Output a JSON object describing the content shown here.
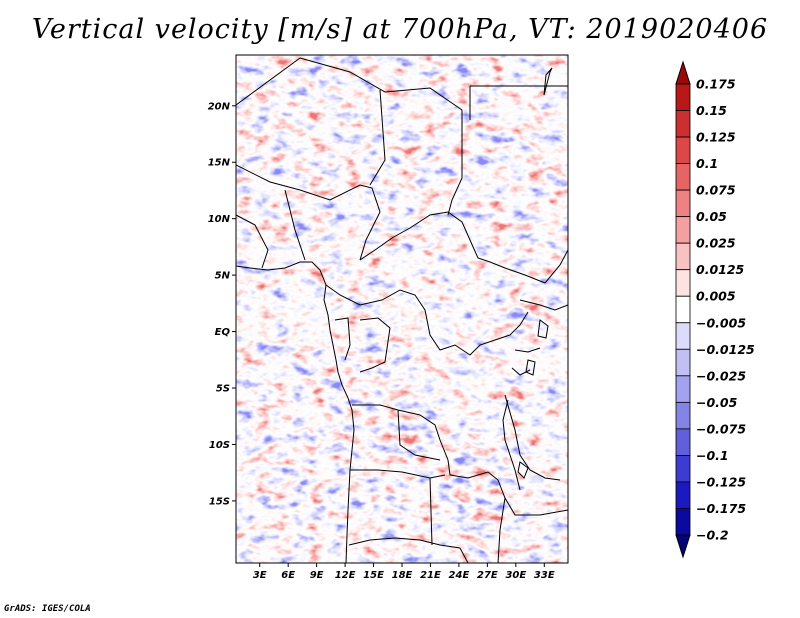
{
  "title": "Vertical velocity [m/s] at 700hPa, VT: 2019020406",
  "credit": "GrADS: IGES/COLA",
  "map": {
    "variable": "Vertical velocity",
    "units": "m/s",
    "level": "700hPa",
    "valid_time": "2019020406",
    "lat_labels": [
      "20N",
      "15N",
      "10N",
      "5N",
      "EQ",
      "5S",
      "10S",
      "15S"
    ],
    "lon_labels": [
      "3E",
      "6E",
      "9E",
      "12E",
      "15E",
      "18E",
      "21E",
      "24E",
      "27E",
      "30E",
      "33E"
    ],
    "lat_values": [
      20,
      15,
      10,
      5,
      0,
      -5,
      -10,
      -15
    ],
    "lon_values": [
      3,
      6,
      9,
      12,
      15,
      18,
      21,
      24,
      27,
      30,
      33
    ],
    "lon_range": [
      0.5,
      35.5
    ],
    "lat_range": [
      -20.5,
      24.5
    ]
  },
  "colorbar": {
    "labels": [
      "0.175",
      "0.15",
      "0.125",
      "0.1",
      "0.075",
      "0.05",
      "0.025",
      "0.0125",
      "0.005",
      "−0.005",
      "−0.0125",
      "−0.025",
      "−0.05",
      "−0.075",
      "−0.1",
      "−0.125",
      "−0.175",
      "−0.2"
    ],
    "colors": [
      "#9b0a0a",
      "#b81818",
      "#cc2f2f",
      "#dc4747",
      "#e66464",
      "#ee8282",
      "#f4a0a0",
      "#f9c2c2",
      "#fde2e2",
      "#ffffff",
      "#dcdcfa",
      "#c0c0f4",
      "#a2a2ee",
      "#8484e6",
      "#6060dc",
      "#3c3cd2",
      "#1a1ac0",
      "#0a0aa0",
      "#040478"
    ]
  }
}
